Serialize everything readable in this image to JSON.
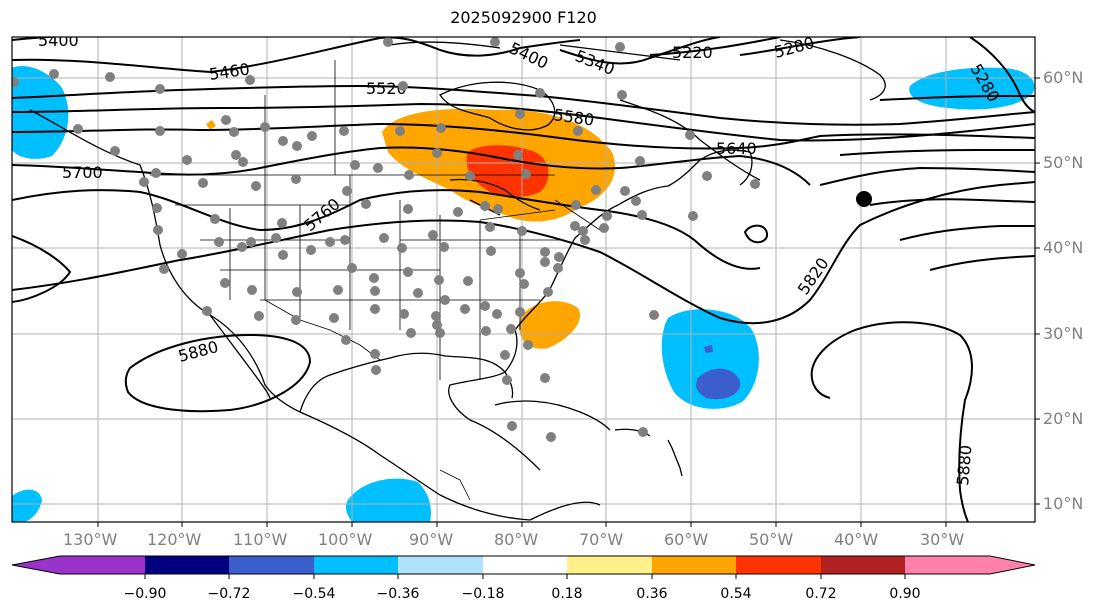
{
  "title": "2025092900 F120",
  "lon_labels": [
    "130°W",
    "120°W",
    "110°W",
    "100°W",
    "90°W",
    "80°W",
    "70°W",
    "60°W",
    "50°W",
    "40°W",
    "30°W"
  ],
  "lat_labels": [
    "60°N",
    "50°N",
    "40°N",
    "30°N",
    "20°N",
    "10°N"
  ],
  "contour_labels": [
    "5400",
    "5460",
    "5400",
    "5340",
    "5220",
    "5280",
    "5280",
    "5520",
    "5580",
    "5640",
    "5700",
    "5760",
    "5820",
    "5880",
    "5880"
  ],
  "colorbar": {
    "ticks": [
      "−0.90",
      "−0.72",
      "−0.54",
      "−0.36",
      "−0.18",
      "0.18",
      "0.36",
      "0.54",
      "0.72",
      "0.90"
    ],
    "colors": [
      "#9933cc",
      "#000080",
      "#3a5fcd",
      "#00bfff",
      "#b0e2ff",
      "#ffffff",
      "#fff08a",
      "#ffa500",
      "#ff3300",
      "#b22222",
      "#ff82ab"
    ]
  },
  "colors": {
    "anomaly_positive": "#ffa500",
    "anomaly_strong_positive": "#ff3300",
    "anomaly_negative": "#00bfff",
    "anomaly_strong_negative": "#3a5fcd",
    "station_marker": "#808080",
    "center_marker": "#000000",
    "grid": "#b0b0b0"
  }
}
